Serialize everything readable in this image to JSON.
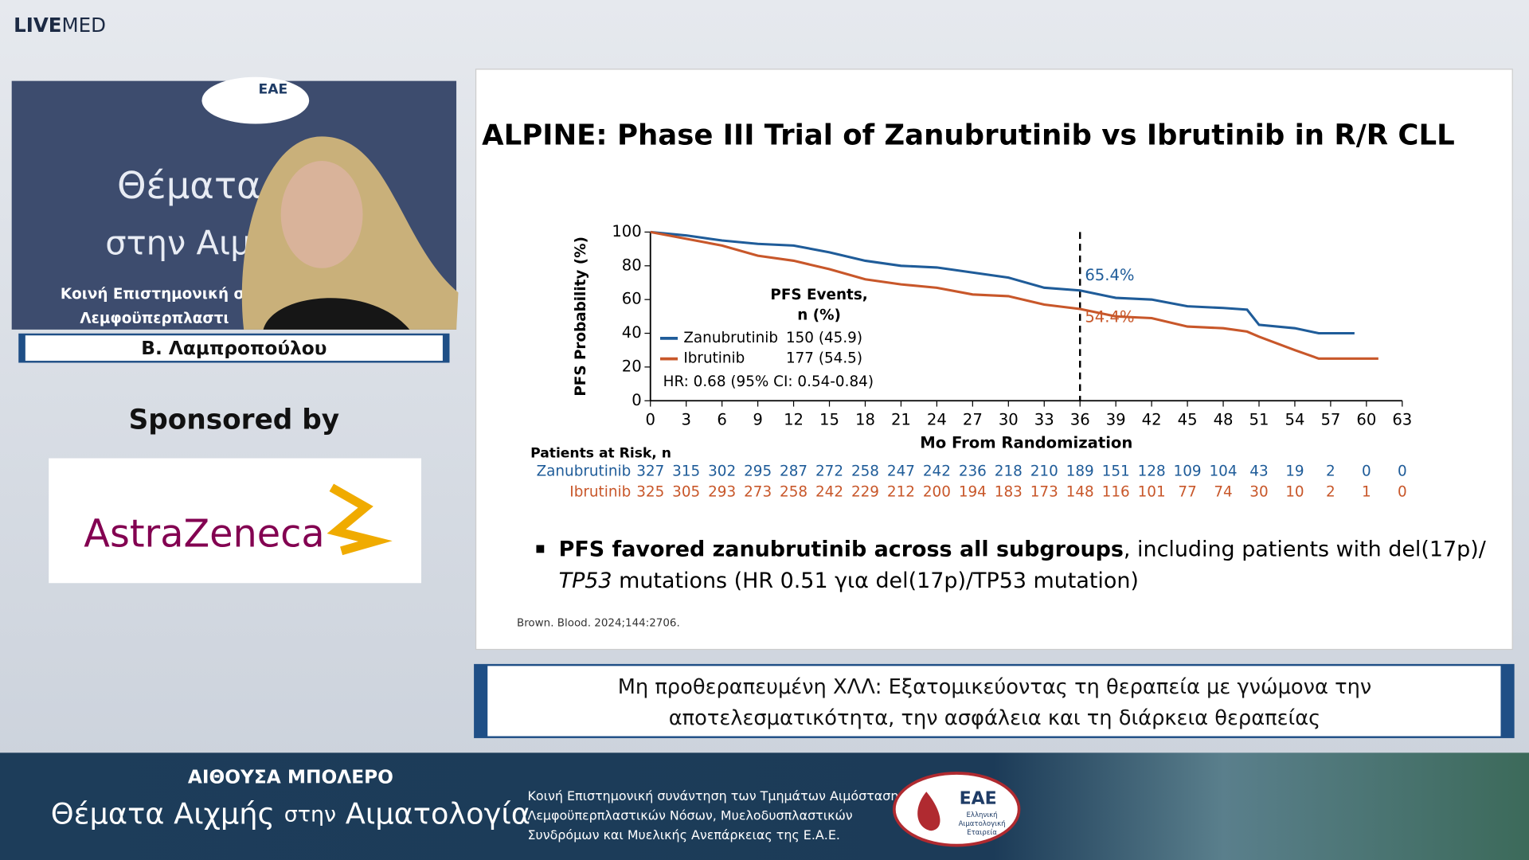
{
  "header": {
    "logo_bold": "LIVE",
    "logo_light": "MED"
  },
  "video": {
    "logo": "ΕΑΕ",
    "lines": [
      "Θέματα",
      "στην Αιμα",
      "Κοινή Επιστημονική σι",
      "Λεμφοϋπερπλαστι"
    ]
  },
  "speaker": {
    "name": "Β. Λαμπροπούλου"
  },
  "sponsor": {
    "label": "Sponsored by",
    "name": "AstraZeneca"
  },
  "slide": {
    "title": "ALPINE: Phase III Trial of Zanubrutinib vs Ibrutinib in R/R CLL",
    "bullet": {
      "bold": "PFS favored zanubrutinib across all subgroups",
      "text1": ", including patients with del(17p)/",
      "italic": "TP53",
      "text2": " mutations (HR 0.51 για del(17p)/TP53 mutation)"
    },
    "citation": "Brown. Blood. 2024;144:2706."
  },
  "chart_data": {
    "type": "line",
    "xlabel": "Mo From Randomization",
    "ylabel": "PFS Probability (%)",
    "x": [
      0,
      3,
      6,
      9,
      12,
      15,
      18,
      21,
      24,
      27,
      30,
      33,
      36,
      39,
      42,
      45,
      48,
      50,
      51,
      54,
      56,
      59,
      61
    ],
    "series": [
      {
        "name": "Zanubrutinib",
        "color": "#1f5c99",
        "events": "150 (45.9)",
        "values": [
          100,
          98,
          95,
          93,
          92,
          88,
          83,
          80,
          79,
          76,
          73,
          67,
          65.4,
          61,
          60,
          56,
          55,
          54,
          45,
          43,
          40,
          40,
          null
        ]
      },
      {
        "name": "Ibrutinib",
        "color": "#c8572a",
        "events": "177 (54.5)",
        "values": [
          100,
          96,
          92,
          86,
          83,
          78,
          72,
          69,
          67,
          63,
          62,
          57,
          54.4,
          50,
          49,
          44,
          43,
          41,
          38,
          30,
          25,
          25,
          25
        ]
      }
    ],
    "legend_title": [
      "PFS Events,",
      "n (%)"
    ],
    "hr_text": "HR: 0.68 (95% CI: 0.54-0.84)",
    "vline": 36,
    "annotations": [
      {
        "text": "65.4%",
        "x": 36,
        "y": 65.4
      },
      {
        "text": "54.4%",
        "x": 36,
        "y": 54.4
      }
    ],
    "xlim": [
      0,
      63
    ],
    "xticks": [
      0,
      3,
      6,
      9,
      12,
      15,
      18,
      21,
      24,
      27,
      30,
      33,
      36,
      39,
      42,
      45,
      48,
      51,
      54,
      57,
      60,
      63
    ],
    "ylim": [
      0,
      100
    ],
    "yticks": [
      0,
      20,
      40,
      60,
      80,
      100
    ],
    "risk_table": {
      "title": "Patients at Risk, n",
      "rows": [
        [
          327,
          315,
          302,
          295,
          287,
          272,
          258,
          247,
          242,
          236,
          218,
          210,
          189,
          151,
          128,
          109,
          104,
          43,
          19,
          2,
          0,
          0
        ],
        [
          325,
          305,
          293,
          273,
          258,
          242,
          229,
          212,
          200,
          194,
          183,
          173,
          148,
          116,
          101,
          77,
          74,
          30,
          10,
          2,
          1,
          0
        ]
      ]
    }
  },
  "caption": {
    "lines": [
      "Μη προθεραπευμένη ΧΛΛ: Εξατομικεύοντας τη θεραπεία με γνώμονα την",
      "αποτελεσματικότητα, την ασφάλεια και τη διάρκεια θεραπείας"
    ]
  },
  "footer": {
    "room": "ΑΙΘΟΥΣΑ ΜΠΟΛΕΡΟ",
    "event_a": "Θέματα Αιχμής ",
    "event_b": "στην",
    "event_c": " Αιματολογία",
    "description": [
      "Κοινή Επιστημονική συνάντηση των Τμημάτων Αιμόστασης,",
      "Λεμφοϋπερπλαστικών Νόσων, Μυελοδυσπλαστικών",
      "Συνδρόμων και Μυελικής Ανεπάρκειας της Ε.Α.Ε."
    ],
    "logo": "ΕΑΕ",
    "logo_sub": [
      "Ελληνική",
      "Αιματολογική",
      "Εταιρεία"
    ]
  }
}
